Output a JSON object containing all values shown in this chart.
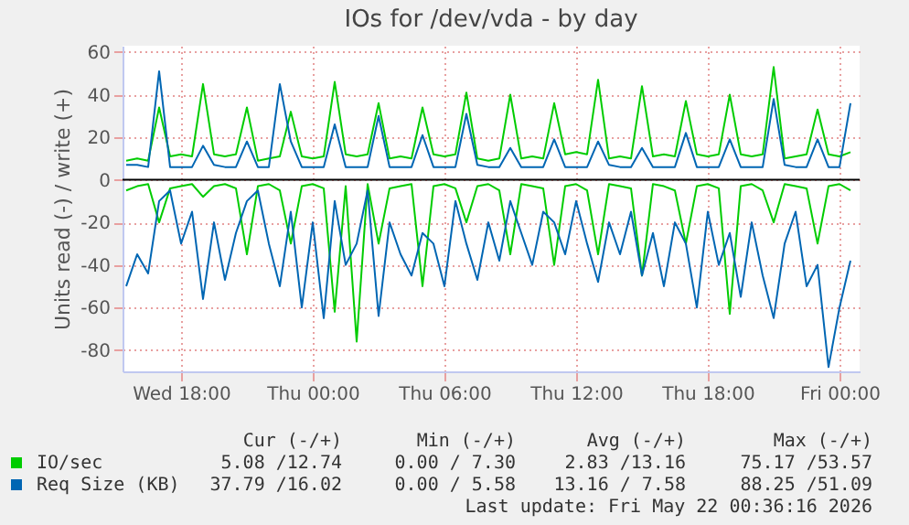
{
  "chart_data": {
    "type": "line",
    "title": "IOs for /dev/vda - by day",
    "ylabel": "Units read (-) / write (+)",
    "x": [
      "2026-05-20T15:30",
      "2026-05-20T16:00",
      "2026-05-20T16:30",
      "2026-05-20T17:00",
      "2026-05-20T17:30",
      "2026-05-20T18:00",
      "2026-05-20T18:30",
      "2026-05-20T19:00",
      "2026-05-20T19:30",
      "2026-05-20T20:00",
      "2026-05-20T20:30",
      "2026-05-20T21:00",
      "2026-05-20T21:30",
      "2026-05-20T22:00",
      "2026-05-20T22:30",
      "2026-05-20T23:00",
      "2026-05-20T23:30",
      "2026-05-21T00:00",
      "2026-05-21T00:30",
      "2026-05-21T01:00",
      "2026-05-21T01:30",
      "2026-05-21T02:00",
      "2026-05-21T02:30",
      "2026-05-21T03:00",
      "2026-05-21T03:30",
      "2026-05-21T04:00",
      "2026-05-21T04:30",
      "2026-05-21T05:00",
      "2026-05-21T05:30",
      "2026-05-21T06:00",
      "2026-05-21T06:30",
      "2026-05-21T07:00",
      "2026-05-21T07:30",
      "2026-05-21T08:00",
      "2026-05-21T08:30",
      "2026-05-21T09:00",
      "2026-05-21T09:30",
      "2026-05-21T10:00",
      "2026-05-21T10:30",
      "2026-05-21T11:00",
      "2026-05-21T11:30",
      "2026-05-21T12:00",
      "2026-05-21T12:30",
      "2026-05-21T13:00",
      "2026-05-21T13:30",
      "2026-05-21T14:00",
      "2026-05-21T14:30",
      "2026-05-21T15:00",
      "2026-05-21T15:30",
      "2026-05-21T16:00",
      "2026-05-21T16:30",
      "2026-05-21T17:00",
      "2026-05-21T17:30",
      "2026-05-21T18:00",
      "2026-05-21T18:30",
      "2026-05-21T19:00",
      "2026-05-21T19:30",
      "2026-05-21T20:00",
      "2026-05-21T20:30",
      "2026-05-21T21:00",
      "2026-05-21T21:30",
      "2026-05-21T22:00",
      "2026-05-21T22:30",
      "2026-05-21T23:00",
      "2026-05-21T23:30",
      "2026-05-22T00:00",
      "2026-05-22T00:30"
    ],
    "series": [
      {
        "name": "IO/sec",
        "color": "#00cc00",
        "values": [
          9,
          10,
          9,
          34,
          11,
          12,
          11,
          45,
          12,
          11,
          12,
          34,
          9,
          10,
          11,
          32,
          11,
          10,
          11,
          46,
          12,
          11,
          12,
          36,
          10,
          11,
          10,
          34,
          12,
          11,
          12,
          41,
          10,
          9,
          10,
          40,
          10,
          11,
          10,
          36,
          12,
          13,
          12,
          47,
          10,
          11,
          10,
          44,
          11,
          12,
          11,
          37,
          12,
          11,
          12,
          40,
          12,
          11,
          12,
          53,
          10,
          11,
          12,
          33,
          12,
          11,
          13
        ]
      },
      {
        "color": "#00cc00",
        "values": [
          -5,
          -3,
          -2,
          -20,
          -4,
          -3,
          -2,
          -8,
          -3,
          -2,
          -4,
          -35,
          -3,
          -2,
          -5,
          -30,
          -3,
          -2,
          -4,
          -62,
          -3,
          -76,
          -2,
          -30,
          -4,
          -3,
          -2,
          -50,
          -3,
          -2,
          -4,
          -20,
          -3,
          -2,
          -5,
          -35,
          -2,
          -3,
          -4,
          -40,
          -3,
          -2,
          -5,
          -35,
          -2,
          -3,
          -4,
          -45,
          -2,
          -3,
          -5,
          -30,
          -3,
          -2,
          -4,
          -63,
          -3,
          -2,
          -5,
          -20,
          -2,
          -3,
          -4,
          -30,
          -3,
          -2,
          -5
        ]
      },
      {
        "name": "Req Size (KB)",
        "color": "#0066b3",
        "values": [
          7,
          7,
          6,
          51,
          6,
          6,
          6,
          16,
          7,
          6,
          6,
          18,
          6,
          6,
          45,
          18,
          6,
          6,
          6,
          26,
          6,
          6,
          6,
          30,
          6,
          6,
          6,
          21,
          6,
          6,
          6,
          31,
          7,
          6,
          6,
          15,
          6,
          6,
          6,
          19,
          6,
          6,
          6,
          18,
          7,
          6,
          6,
          15,
          6,
          6,
          6,
          22,
          6,
          6,
          6,
          19,
          6,
          6,
          6,
          38,
          7,
          6,
          6,
          19,
          6,
          6,
          36
        ]
      },
      {
        "color": "#0066b3",
        "values": [
          -50,
          -35,
          -44,
          -10,
          -5,
          -30,
          -15,
          -56,
          -20,
          -47,
          -25,
          -10,
          -5,
          -30,
          -50,
          -15,
          -60,
          -20,
          -65,
          -10,
          -40,
          -30,
          -5,
          -64,
          -20,
          -35,
          -45,
          -25,
          -30,
          -50,
          -10,
          -30,
          -47,
          -20,
          -38,
          -10,
          -25,
          -40,
          -15,
          -20,
          -35,
          -10,
          -30,
          -48,
          -20,
          -35,
          -15,
          -45,
          -25,
          -50,
          -20,
          -30,
          -60,
          -15,
          -40,
          -25,
          -55,
          -20,
          -45,
          -65,
          -30,
          -15,
          -50,
          -40,
          -88,
          -60,
          -38
        ]
      }
    ],
    "xlim": [
      "2026-05-20T15:20",
      "2026-05-22T00:55"
    ],
    "xticks": [
      {
        "value": "2026-05-20T18:00",
        "label": "Wed 18:00"
      },
      {
        "value": "2026-05-21T00:00",
        "label": "Thu 00:00"
      },
      {
        "value": "2026-05-21T06:00",
        "label": "Thu 06:00"
      },
      {
        "value": "2026-05-21T12:00",
        "label": "Thu 12:00"
      },
      {
        "value": "2026-05-21T18:00",
        "label": "Thu 18:00"
      },
      {
        "value": "2026-05-22T00:00",
        "label": "Fri 00:00"
      }
    ],
    "ylim": [
      -90,
      63
    ],
    "yticks": [
      -80,
      -60,
      -40,
      -20,
      0,
      20,
      40,
      60
    ],
    "ref_lines": [
      {
        "axis": "y",
        "value": 0,
        "color": "#000000"
      }
    ],
    "grid": true,
    "legend": "bottom left",
    "annotations": [
      "Cur (-/+)",
      "Min (-/+)",
      "Avg (-/+)",
      "Max (-/+)",
      "5.08 /12.74",
      "0.00 / 7.30",
      "2.83 /13.16",
      "75.17 /53.57",
      "37.79 /16.02",
      "0.00 / 5.58",
      "13.16 / 7.58",
      "88.25 /51.09",
      "Last update: Fri May 22 00:36:16 2026"
    ]
  }
}
